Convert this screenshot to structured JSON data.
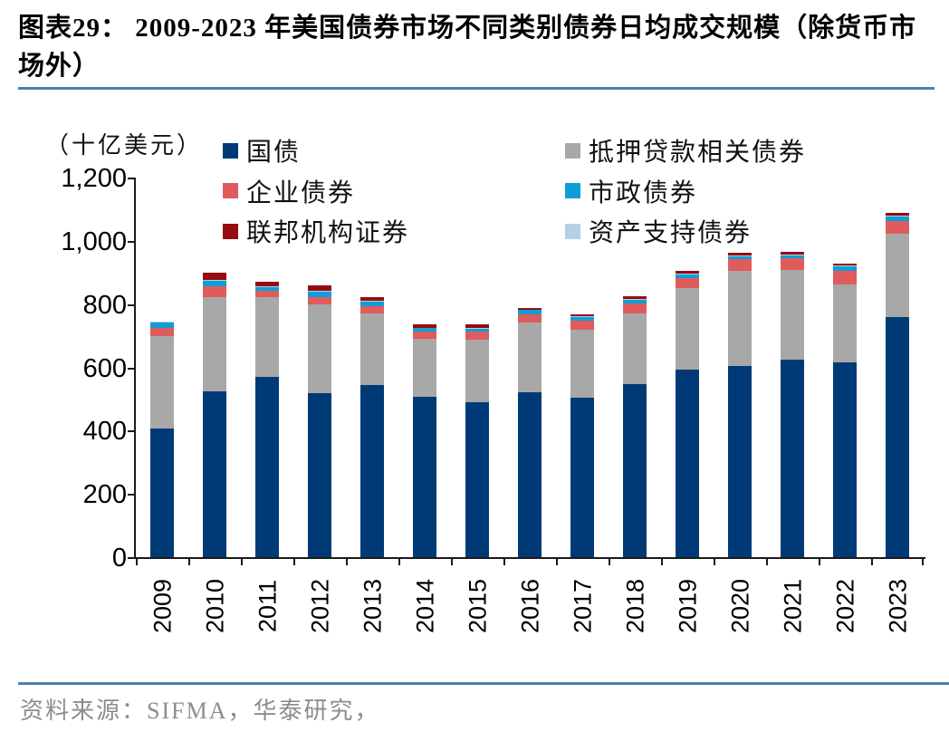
{
  "title": "图表29：  2009-2023 年美国债券市场不同类别债券日均成交规模（除货币市场外）",
  "unit_label": "（十亿美元）",
  "source": "资料来源：SIFMA，华泰研究，",
  "colors": {
    "treasury": "#003a76",
    "mortgage_related": "#a8a8a8",
    "corporate": "#e05c5c",
    "municipal": "#0f9ed5",
    "abs": "#b3d0e8",
    "federal_agency": "#940d10",
    "divider": "#4e7fae",
    "source_text": "#8c8c8c",
    "axis": "#1a1a1a"
  },
  "chart_data": {
    "type": "bar",
    "stacked": true,
    "title": "2009-2023 年美国债券市场不同类别债券日均成交规模（除货币市场外）",
    "ylabel": "（十亿美元）",
    "xlabel": "",
    "ylim": [
      0,
      1200
    ],
    "y_ticks": [
      "0",
      "200",
      "400",
      "600",
      "800",
      "1,000",
      "1,200"
    ],
    "grid": false,
    "legend_position": "top",
    "categories": [
      "2009",
      "2010",
      "2011",
      "2012",
      "2013",
      "2014",
      "2015",
      "2016",
      "2017",
      "2018",
      "2019",
      "2020",
      "2021",
      "2022",
      "2023"
    ],
    "series": [
      {
        "key": "treasury",
        "name": "国债",
        "values": [
          408,
          523,
          570,
          519,
          545,
          506,
          490,
          520,
          504,
          547,
          594,
          604,
          624,
          615,
          760
        ]
      },
      {
        "key": "mortgage_related",
        "name": "抵押贷款相关债券",
        "values": [
          292,
          298,
          252,
          281,
          226,
          184,
          197,
          221,
          215,
          223,
          256,
          301,
          284,
          247,
          262
        ]
      },
      {
        "key": "corporate",
        "name": "企业债券",
        "values": [
          25,
          34,
          20,
          23,
          23,
          23,
          26,
          26,
          29,
          32,
          32,
          37,
          37,
          43,
          41
        ]
      },
      {
        "key": "municipal",
        "name": "市政债券",
        "values": [
          17,
          20,
          12,
          17,
          15,
          11,
          9,
          14,
          11,
          11,
          12,
          9,
          9,
          14,
          14
        ]
      },
      {
        "key": "abs",
        "name": "资产支持债券",
        "values": [
          4,
          2,
          2,
          2,
          2,
          2,
          2,
          2,
          2,
          2,
          2,
          2,
          2,
          2,
          2
        ]
      },
      {
        "key": "federal_agency",
        "name": "联邦机构证券",
        "values": [
          0,
          22,
          16,
          18,
          11,
          9,
          11,
          4,
          8,
          9,
          8,
          9,
          8,
          7,
          9
        ]
      }
    ],
    "legend": [
      {
        "label": "国债",
        "key": "treasury",
        "column": 0,
        "row": 0
      },
      {
        "label": "企业债券",
        "key": "corporate",
        "column": 0,
        "row": 1
      },
      {
        "label": "联邦机构证券",
        "key": "federal_agency",
        "column": 0,
        "row": 2
      },
      {
        "label": "抵押贷款相关债券",
        "key": "mortgage_related",
        "column": 1,
        "row": 0
      },
      {
        "label": "市政债券",
        "key": "municipal",
        "column": 1,
        "row": 1
      },
      {
        "label": "资产支持债券",
        "key": "abs",
        "column": 1,
        "row": 2
      }
    ]
  }
}
